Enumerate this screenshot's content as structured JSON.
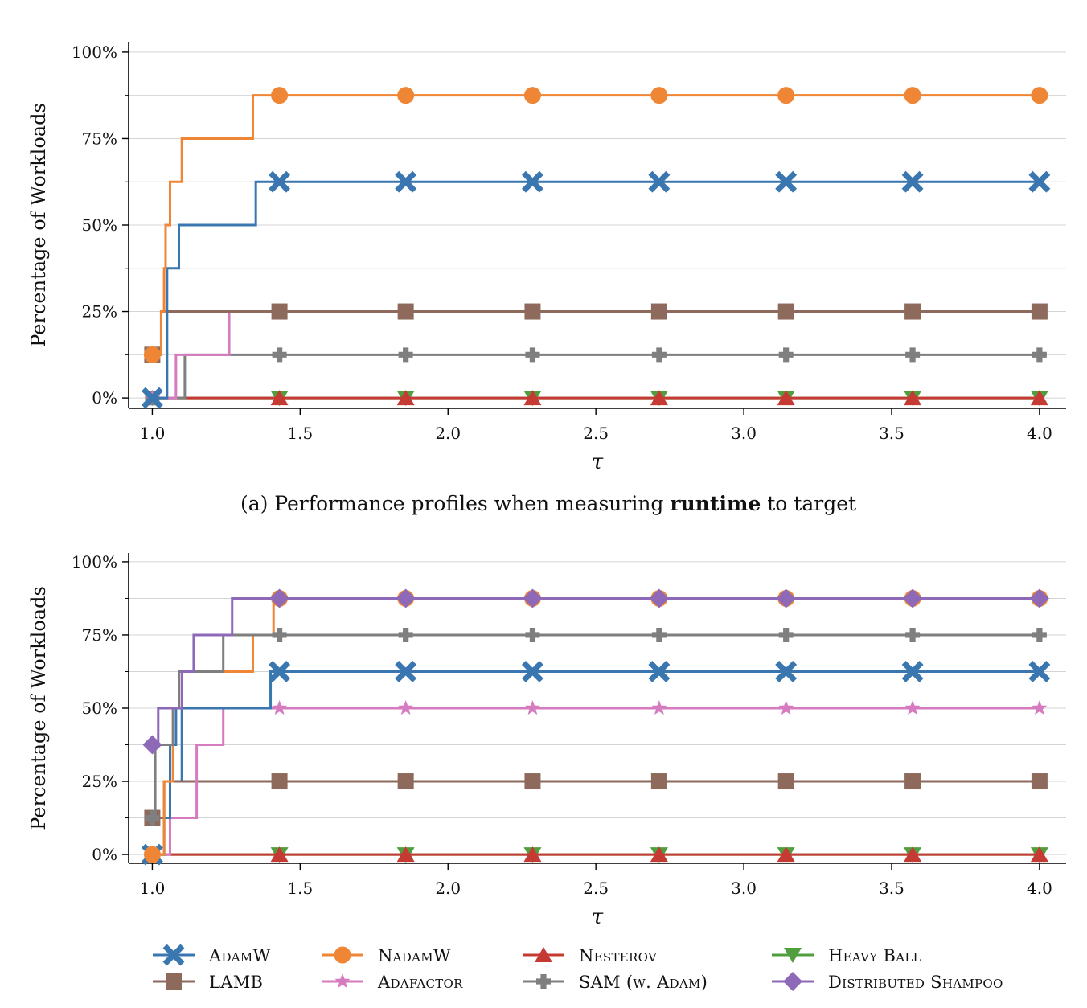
{
  "chart_data": [
    {
      "type": "line",
      "title": "",
      "caption_parts": [
        "(a) Performance profiles when measuring ",
        "runtime",
        " to target"
      ],
      "xlabel": "τ",
      "ylabel": "Percentage of Workloads",
      "xlim": [
        0.92,
        4.09
      ],
      "ylim": [
        -0.03,
        1.03
      ],
      "xticks": [
        1.0,
        1.5,
        2.0,
        2.5,
        3.0,
        3.5,
        4.0
      ],
      "xtick_labels": [
        "1.0",
        "1.5",
        "2.0",
        "2.5",
        "3.0",
        "3.5",
        "4.0"
      ],
      "yticks": [
        0,
        0.25,
        0.5,
        0.75,
        1.0
      ],
      "ytick_labels": [
        "0%",
        "25%",
        "50%",
        "75%",
        "100%"
      ],
      "grid": "horizontal",
      "series": [
        {
          "name": "HeavyBall",
          "steps": [
            [
              1.0,
              0.0
            ],
            [
              4.0,
              0.0
            ]
          ]
        },
        {
          "name": "Nesterov",
          "steps": [
            [
              1.0,
              0.0
            ],
            [
              4.0,
              0.0
            ]
          ]
        },
        {
          "name": "SAM",
          "steps": [
            [
              1.0,
              0.0
            ],
            [
              1.11,
              0.125
            ],
            [
              4.0,
              0.125
            ]
          ]
        },
        {
          "name": "Adafactor",
          "steps": [
            [
              1.0,
              0.0
            ],
            [
              1.08,
              0.125
            ],
            [
              1.26,
              0.25
            ],
            [
              4.0,
              0.25
            ]
          ]
        },
        {
          "name": "LAMB",
          "steps": [
            [
              1.0,
              0.125
            ],
            [
              1.03,
              0.25
            ],
            [
              4.0,
              0.25
            ]
          ]
        },
        {
          "name": "AdamW",
          "steps": [
            [
              1.0,
              0.0
            ],
            [
              1.05,
              0.375
            ],
            [
              1.09,
              0.5
            ],
            [
              1.35,
              0.625
            ],
            [
              4.0,
              0.625
            ]
          ]
        },
        {
          "name": "NadamW",
          "steps": [
            [
              1.0,
              0.125
            ],
            [
              1.03,
              0.25
            ],
            [
              1.04,
              0.375
            ],
            [
              1.045,
              0.5
            ],
            [
              1.06,
              0.625
            ],
            [
              1.1,
              0.75
            ],
            [
              1.34,
              0.875
            ],
            [
              4.0,
              0.875
            ]
          ]
        }
      ]
    },
    {
      "type": "line",
      "title": "",
      "xlabel": "τ",
      "ylabel": "Percentage of Workloads",
      "xlim": [
        0.92,
        4.09
      ],
      "ylim": [
        -0.03,
        1.03
      ],
      "xticks": [
        1.0,
        1.5,
        2.0,
        2.5,
        3.0,
        3.5,
        4.0
      ],
      "xtick_labels": [
        "1.0",
        "1.5",
        "2.0",
        "2.5",
        "3.0",
        "3.5",
        "4.0"
      ],
      "yticks": [
        0,
        0.25,
        0.5,
        0.75,
        1.0
      ],
      "ytick_labels": [
        "0%",
        "25%",
        "50%",
        "75%",
        "100%"
      ],
      "grid": "horizontal",
      "series": [
        {
          "name": "HeavyBall",
          "steps": [
            [
              1.0,
              0.0
            ],
            [
              4.0,
              0.0
            ]
          ]
        },
        {
          "name": "Nesterov",
          "steps": [
            [
              1.0,
              0.0
            ],
            [
              4.0,
              0.0
            ]
          ]
        },
        {
          "name": "LAMB",
          "steps": [
            [
              1.0,
              0.125
            ],
            [
              1.04,
              0.25
            ],
            [
              4.0,
              0.25
            ]
          ]
        },
        {
          "name": "Adafactor",
          "steps": [
            [
              1.0,
              0.0
            ],
            [
              1.06,
              0.125
            ],
            [
              1.15,
              0.375
            ],
            [
              1.24,
              0.5
            ],
            [
              4.0,
              0.5
            ]
          ]
        },
        {
          "name": "AdamW",
          "steps": [
            [
              1.0,
              0.0
            ],
            [
              1.04,
              0.125
            ],
            [
              1.06,
              0.375
            ],
            [
              1.08,
              0.5
            ],
            [
              1.1,
              0.25
            ],
            [
              1.1,
              0.5
            ],
            [
              1.4,
              0.625
            ],
            [
              4.0,
              0.625
            ]
          ]
        },
        {
          "name": "NadamW",
          "steps": [
            [
              1.0,
              0.0
            ],
            [
              1.04,
              0.25
            ],
            [
              1.07,
              0.5
            ],
            [
              1.09,
              0.625
            ],
            [
              1.25,
              0.625
            ],
            [
              1.34,
              0.75
            ],
            [
              1.41,
              0.875
            ],
            [
              4.0,
              0.875
            ]
          ]
        },
        {
          "name": "SAM",
          "steps": [
            [
              1.0,
              0.125
            ],
            [
              1.01,
              0.375
            ],
            [
              1.07,
              0.5
            ],
            [
              1.09,
              0.625
            ],
            [
              1.24,
              0.75
            ],
            [
              4.0,
              0.75
            ]
          ]
        },
        {
          "name": "DistributedShampoo",
          "steps": [
            [
              1.0,
              0.375
            ],
            [
              1.02,
              0.5
            ],
            [
              1.1,
              0.625
            ],
            [
              1.14,
              0.75
            ],
            [
              1.27,
              0.875
            ],
            [
              4.0,
              0.875
            ]
          ]
        }
      ]
    }
  ],
  "marker_x": [
    1.0,
    1.43,
    1.857,
    2.286,
    2.714,
    3.143,
    3.571,
    4.0
  ],
  "legend": [
    {
      "key": "AdamW",
      "label": "AdamW",
      "color": "#3a76af",
      "marker": "x-icon"
    },
    {
      "key": "NadamW",
      "label": "NadamW",
      "color": "#ef8636",
      "marker": "circle-icon"
    },
    {
      "key": "Nesterov",
      "label": "Nesterov",
      "color": "#c53a32",
      "marker": "triangle-up-icon"
    },
    {
      "key": "HeavyBall",
      "label": "Heavy Ball",
      "color": "#519e3e",
      "marker": "triangle-down-icon"
    },
    {
      "key": "LAMB",
      "label": "LAMB",
      "color": "#8d6a5c",
      "marker": "square-icon"
    },
    {
      "key": "Adafactor",
      "label": "Adafactor",
      "color": "#d67bbf",
      "marker": "star-icon"
    },
    {
      "key": "SAM",
      "label": "SAM (w. Adam)",
      "color": "#7f7f7f",
      "marker": "plus-icon"
    },
    {
      "key": "DistributedShampoo",
      "label": "Distributed Shampoo",
      "color": "#8d69b8",
      "marker": "diamond-icon"
    }
  ]
}
